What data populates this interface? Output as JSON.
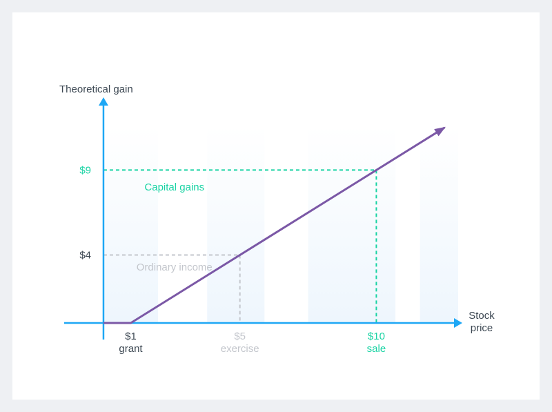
{
  "chart_data": {
    "type": "line",
    "ylabel": "Theoretical gain",
    "xlabel_lines": [
      "Stock",
      "price"
    ],
    "series": [
      {
        "x": [
          0,
          1,
          12.5
        ],
        "y": [
          0,
          0,
          11.5
        ]
      }
    ],
    "xlim": [
      -0.1,
      13.1
    ],
    "ylim": [
      0,
      13.2
    ],
    "x_ticks": [
      {
        "value": 1,
        "lines": [
          "$1",
          "grant"
        ],
        "style": "dark"
      },
      {
        "value": 5,
        "lines": [
          "$5",
          "exercise"
        ],
        "style": "muted"
      },
      {
        "value": 10,
        "lines": [
          "$10",
          "sale"
        ],
        "style": "accent"
      }
    ],
    "y_ticks": [
      {
        "value": 4,
        "label": "$4",
        "style": "dark"
      },
      {
        "value": 9,
        "label": "$9",
        "style": "accent"
      }
    ],
    "reference_lines": [
      {
        "x": 5,
        "y": 4,
        "style": "muted"
      },
      {
        "x": 10,
        "y": 9,
        "style": "accent"
      }
    ],
    "annotations": [
      {
        "text": "Capital gains",
        "x": 2.6,
        "y": 8.0,
        "style": "accent"
      },
      {
        "text": "Ordinary income",
        "x": 2.6,
        "y": 3.3,
        "style": "muted"
      }
    ],
    "background_bands": [
      {
        "x0": 0,
        "x1": 2.0
      },
      {
        "x0": 3.8,
        "x1": 5.9
      },
      {
        "x0": 7.5,
        "x1": 10.7
      },
      {
        "x0": 11.6,
        "x1": 14.2
      }
    ],
    "grid": false
  },
  "colors": {
    "axis": "#1ea7f5",
    "line": "#7b58a6",
    "accent": "#18d3a3",
    "muted": "#c3c6cc",
    "dark": "#3c4752",
    "band": "#eef6fd"
  }
}
